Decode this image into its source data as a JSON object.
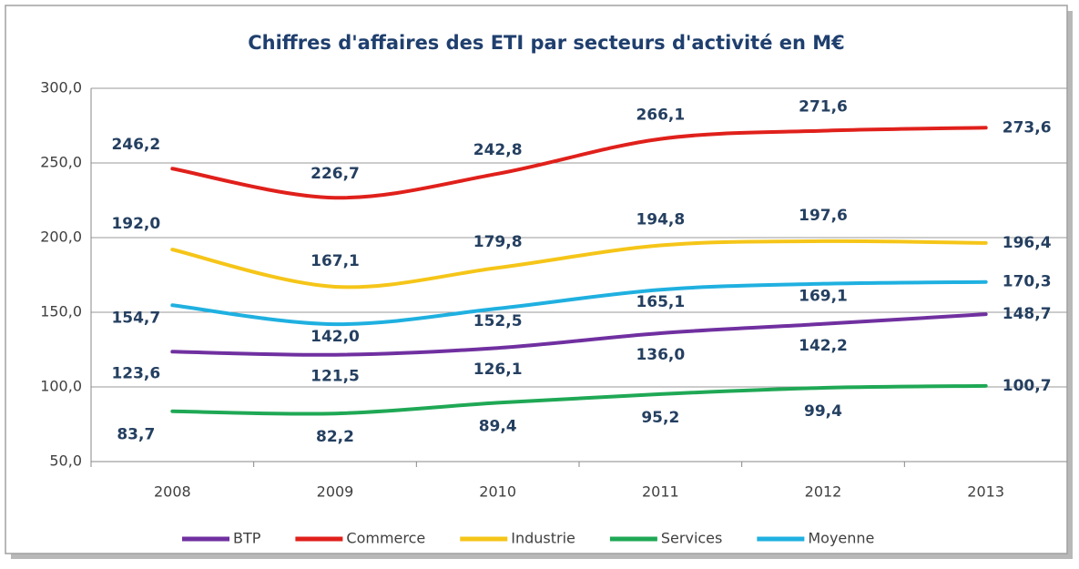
{
  "chart_data": {
    "type": "line",
    "title": "Chiffres d'affaires des ETI par secteurs d'activité en M€",
    "categories": [
      "2008",
      "2009",
      "2010",
      "2011",
      "2012",
      "2013"
    ],
    "series": [
      {
        "name": "BTP",
        "color": "#7030a0",
        "values": [
          123.6,
          121.5,
          126.1,
          136.0,
          142.2,
          148.7
        ],
        "value_labels": [
          "123,6",
          "121,5",
          "126,1",
          "136,0",
          "142,2",
          "148,7"
        ]
      },
      {
        "name": "Commerce",
        "color": "#e0201b",
        "values": [
          246.2,
          226.7,
          242.8,
          266.1,
          271.6,
          273.6
        ],
        "value_labels": [
          "246,2",
          "226,7",
          "242,8",
          "266,1",
          "271,6",
          "273,6"
        ]
      },
      {
        "name": "Industrie",
        "color": "#f5c518",
        "values": [
          192.0,
          167.1,
          179.8,
          194.8,
          197.6,
          196.4
        ],
        "value_labels": [
          "192,0",
          "167,1",
          "179,8",
          "194,8",
          "197,6",
          "196,4"
        ]
      },
      {
        "name": "Services",
        "color": "#1fa855",
        "values": [
          83.7,
          82.2,
          89.4,
          95.2,
          99.4,
          100.7
        ],
        "value_labels": [
          "83,7",
          "82,2",
          "89,4",
          "95,2",
          "99,4",
          "100,7"
        ]
      },
      {
        "name": "Moyenne",
        "color": "#1fb0e0",
        "values": [
          154.7,
          142.0,
          152.5,
          165.1,
          169.1,
          170.3
        ],
        "value_labels": [
          "154,7",
          "142,0",
          "152,5",
          "165,1",
          "169,1",
          "170,3"
        ]
      }
    ],
    "ylim": [
      50,
      300
    ],
    "yticks": [
      {
        "value": 50,
        "label": "50,0"
      },
      {
        "value": 100,
        "label": "100,0"
      },
      {
        "value": 150,
        "label": "150,0"
      },
      {
        "value": 200,
        "label": "200,0"
      },
      {
        "value": 250,
        "label": "250,0"
      },
      {
        "value": 300,
        "label": "300,0"
      }
    ],
    "grid": true,
    "legend": "bottom"
  }
}
